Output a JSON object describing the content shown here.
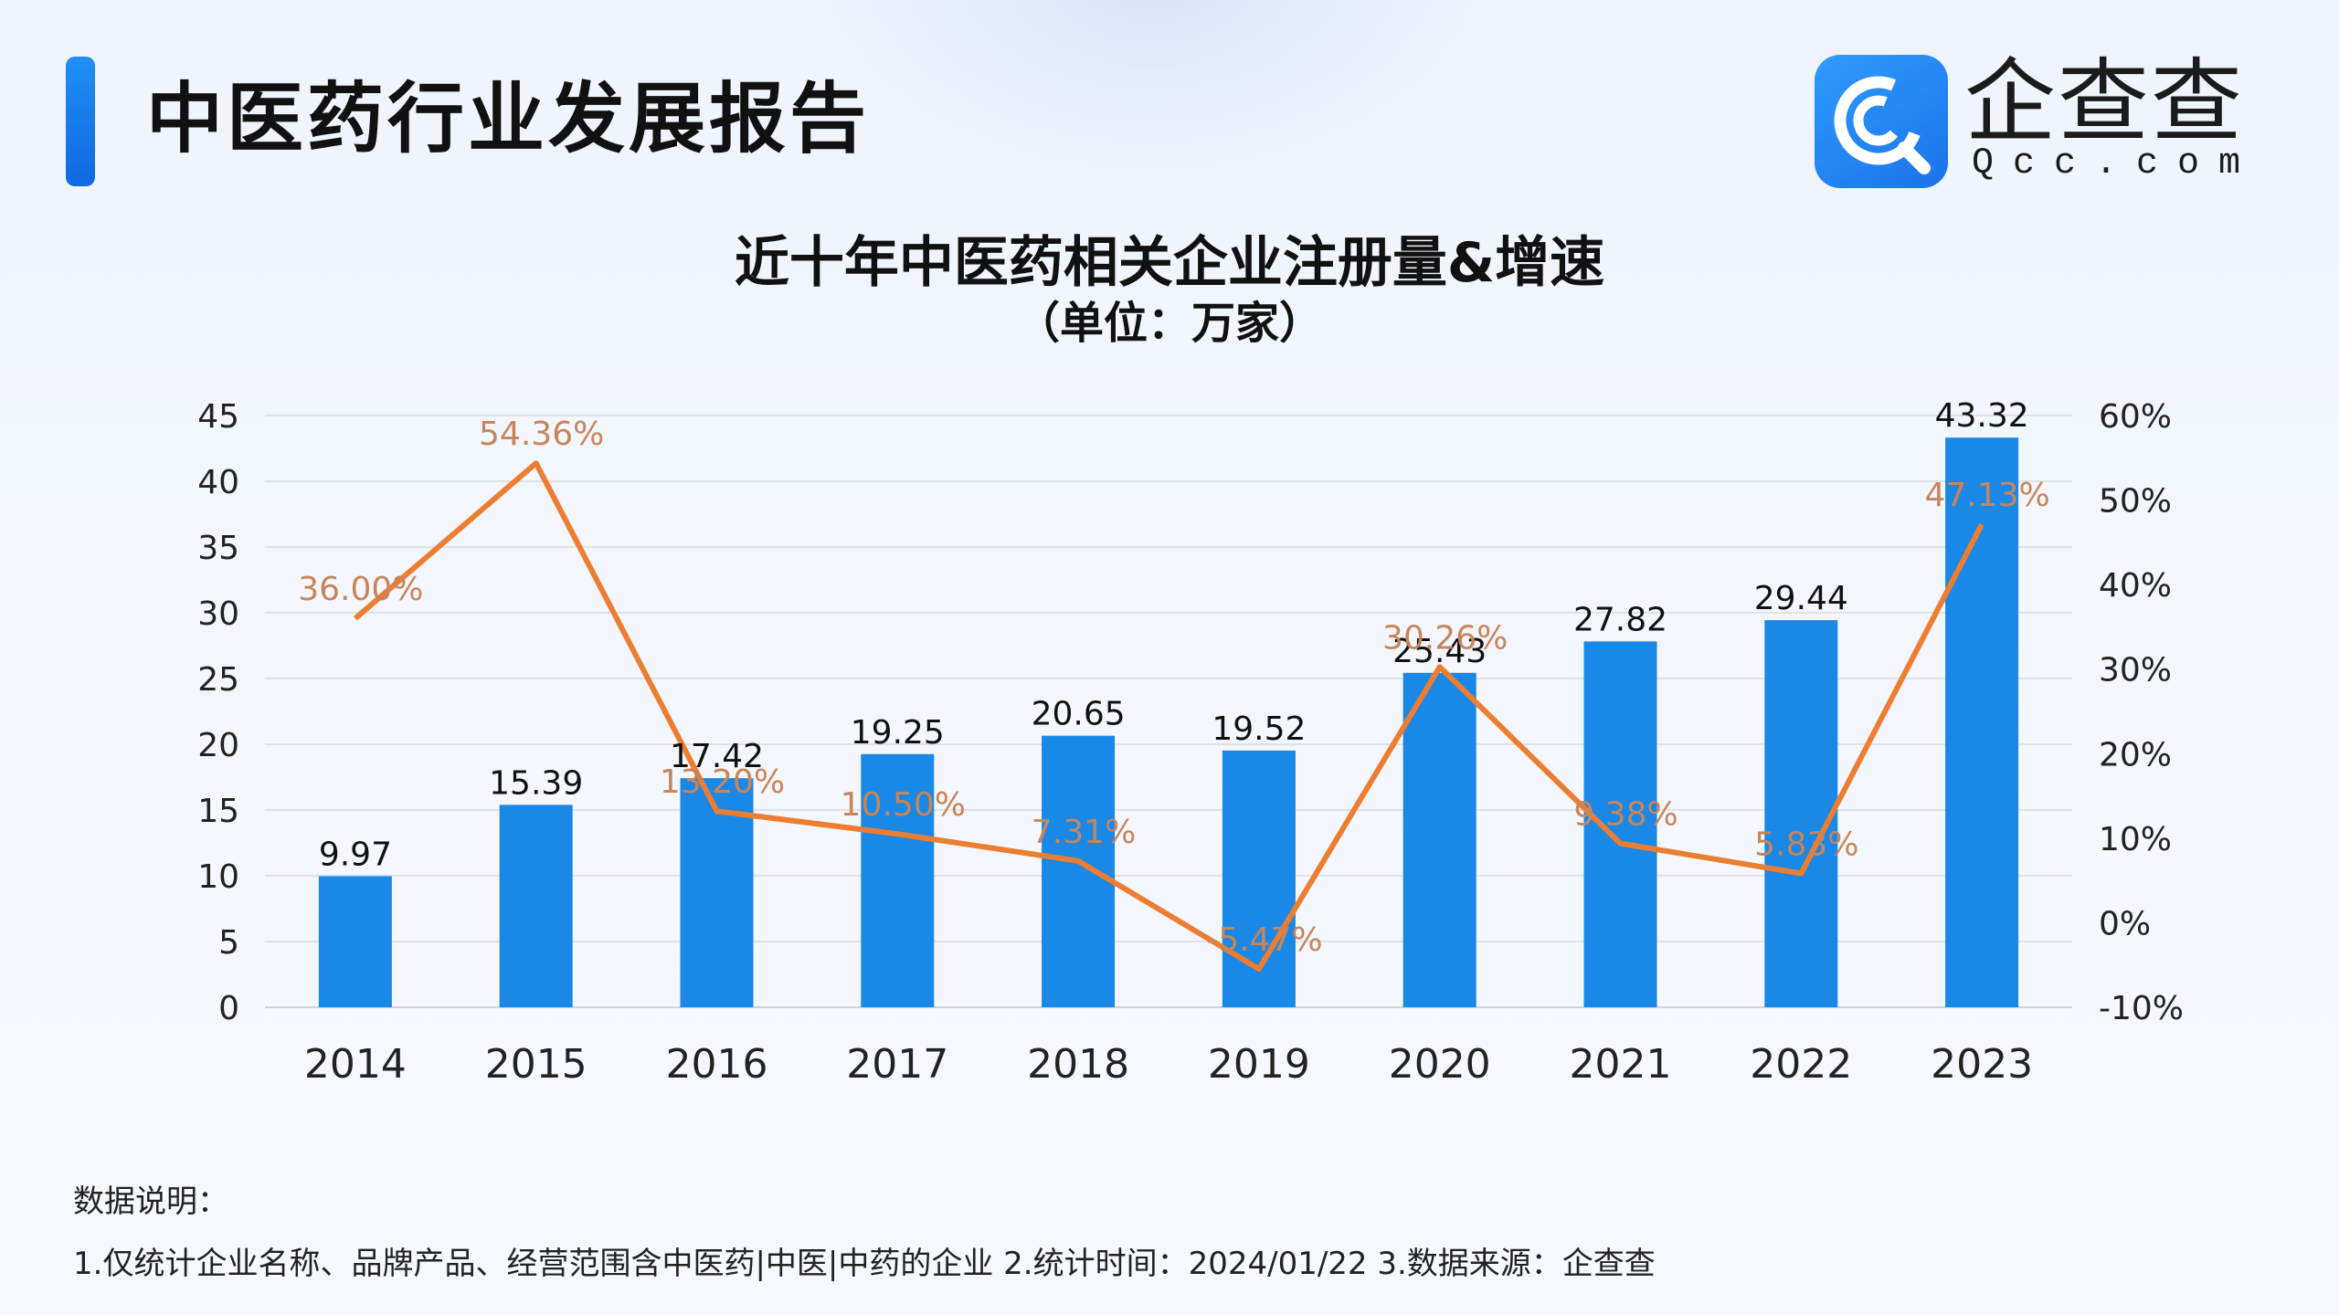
{
  "header": {
    "report_title": "中医药行业发展报告",
    "logo_text": "企查查",
    "logo_sub": "Qcc.com",
    "logo_icon": "qcc-magnifier-logo-icon"
  },
  "chart_data": {
    "type": "bar+line",
    "title": "近十年中医药相关企业注册量&增速",
    "subtitle": "（单位：万家）",
    "categories": [
      "2014",
      "2015",
      "2016",
      "2017",
      "2018",
      "2019",
      "2020",
      "2021",
      "2022",
      "2023"
    ],
    "series": [
      {
        "type": "bar",
        "axis": "left",
        "values": [
          9.97,
          15.39,
          17.42,
          19.25,
          20.65,
          19.52,
          25.43,
          27.82,
          29.44,
          43.32
        ],
        "labels": [
          "9.97",
          "15.39",
          "17.42",
          "19.25",
          "20.65",
          "19.52",
          "25.43",
          "27.82",
          "29.44",
          "43.32"
        ],
        "color": "#1a88e6"
      },
      {
        "type": "line",
        "axis": "right",
        "values": [
          36.0,
          54.36,
          13.2,
          10.5,
          7.31,
          -5.47,
          30.26,
          9.38,
          5.83,
          47.13
        ],
        "labels": [
          "36.00%",
          "54.36%",
          "13.20%",
          "10.50%",
          "7.31%",
          "-5.47%",
          "30.26%",
          "9.38%",
          "5.83%",
          "47.13%"
        ],
        "color": "#ed7d31",
        "label_color": "#c8855a"
      }
    ],
    "y_left": {
      "min": 0,
      "max": 45,
      "ticks": [
        "0",
        "5",
        "10",
        "15",
        "20",
        "25",
        "30",
        "35",
        "40",
        "45"
      ]
    },
    "y_right": {
      "min": -10,
      "max": 60,
      "ticks": [
        "-10%",
        "0%",
        "10%",
        "20%",
        "30%",
        "40%",
        "50%",
        "60%"
      ]
    },
    "grid": true,
    "legend": "none"
  },
  "notes": {
    "title": "数据说明：",
    "line": "1.仅统计企业名称、品牌产品、经营范围含中医药|中医|中药的企业    2.统计时间：2024/01/22    3.数据来源：企查查"
  }
}
